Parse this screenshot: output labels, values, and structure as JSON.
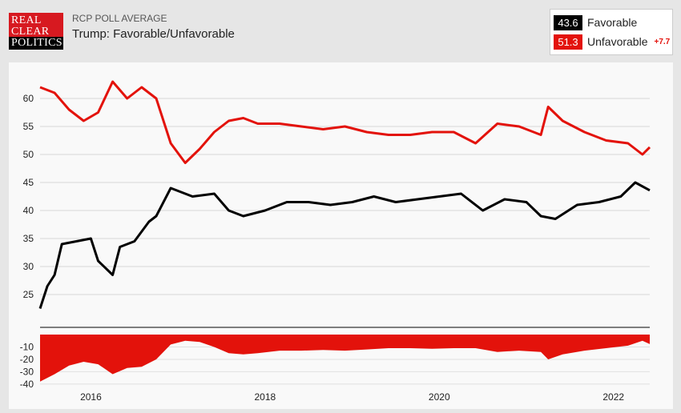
{
  "header": {
    "logo_lines": [
      "REAL",
      "CLEAR",
      "POLITICS"
    ],
    "kicker": "RCP POLL AVERAGE",
    "title": "Trump: Favorable/Unfavorable"
  },
  "legend": {
    "favorable": {
      "value": "43.6",
      "label": "Favorable",
      "color": "#000000"
    },
    "unfavorable": {
      "value": "51.3",
      "label": "Unfavorable",
      "color": "#e3120b"
    },
    "spread": "+7.7"
  },
  "chart_data": [
    {
      "type": "line",
      "title": "Trump: Favorable/Unfavorable",
      "ylim": [
        20,
        65
      ],
      "yticks": [
        25,
        30,
        35,
        40,
        45,
        50,
        55,
        60
      ],
      "xlim": [
        "2015-06",
        "2022-06"
      ],
      "xticks": [
        "2016",
        "2018",
        "2020",
        "2022"
      ],
      "grid": true,
      "series": [
        {
          "name": "Unfavorable",
          "color": "#e3120b",
          "points": [
            [
              "2015-06",
              62
            ],
            [
              "2015-08",
              61
            ],
            [
              "2015-10",
              58
            ],
            [
              "2015-12",
              56
            ],
            [
              "2016-02",
              57.5
            ],
            [
              "2016-04",
              63
            ],
            [
              "2016-06",
              60
            ],
            [
              "2016-08",
              62
            ],
            [
              "2016-10",
              60
            ],
            [
              "2016-12",
              52
            ],
            [
              "2017-02",
              48.5
            ],
            [
              "2017-04",
              51
            ],
            [
              "2017-06",
              54
            ],
            [
              "2017-08",
              56
            ],
            [
              "2017-10",
              56.5
            ],
            [
              "2017-12",
              55.5
            ],
            [
              "2018-03",
              55.5
            ],
            [
              "2018-06",
              55
            ],
            [
              "2018-09",
              54.5
            ],
            [
              "2018-12",
              55
            ],
            [
              "2019-03",
              54
            ],
            [
              "2019-06",
              53.5
            ],
            [
              "2019-09",
              53.5
            ],
            [
              "2019-12",
              54
            ],
            [
              "2020-03",
              54
            ],
            [
              "2020-06",
              52
            ],
            [
              "2020-09",
              55.5
            ],
            [
              "2020-12",
              55
            ],
            [
              "2021-03",
              53.5
            ],
            [
              "2021-04",
              58.5
            ],
            [
              "2021-06",
              56
            ],
            [
              "2021-09",
              54
            ],
            [
              "2021-12",
              52.5
            ],
            [
              "2022-03",
              52
            ],
            [
              "2022-05",
              50
            ],
            [
              "2022-06",
              51.3
            ]
          ]
        },
        {
          "name": "Favorable",
          "color": "#000000",
          "points": [
            [
              "2015-06",
              22.5
            ],
            [
              "2015-07",
              26.5
            ],
            [
              "2015-08",
              28.5
            ],
            [
              "2015-09",
              34
            ],
            [
              "2015-11",
              34.5
            ],
            [
              "2016-01",
              35
            ],
            [
              "2016-02",
              31
            ],
            [
              "2016-04",
              28.5
            ],
            [
              "2016-05",
              33.5
            ],
            [
              "2016-07",
              34.5
            ],
            [
              "2016-09",
              38
            ],
            [
              "2016-10",
              39
            ],
            [
              "2016-12",
              44
            ],
            [
              "2017-03",
              42.5
            ],
            [
              "2017-06",
              43
            ],
            [
              "2017-08",
              40
            ],
            [
              "2017-10",
              39
            ],
            [
              "2018-01",
              40
            ],
            [
              "2018-04",
              41.5
            ],
            [
              "2018-07",
              41.5
            ],
            [
              "2018-10",
              41
            ],
            [
              "2019-01",
              41.5
            ],
            [
              "2019-04",
              42.5
            ],
            [
              "2019-07",
              41.5
            ],
            [
              "2019-10",
              42
            ],
            [
              "2020-01",
              42.5
            ],
            [
              "2020-04",
              43
            ],
            [
              "2020-07",
              40
            ],
            [
              "2020-10",
              42
            ],
            [
              "2021-01",
              41.5
            ],
            [
              "2021-03",
              39
            ],
            [
              "2021-05",
              38.5
            ],
            [
              "2021-08",
              41
            ],
            [
              "2021-11",
              41.5
            ],
            [
              "2022-02",
              42.5
            ],
            [
              "2022-04",
              45
            ],
            [
              "2022-06",
              43.6
            ]
          ]
        }
      ]
    },
    {
      "type": "area",
      "title": "",
      "ylim": [
        -42,
        0
      ],
      "yticks": [
        -10,
        -20,
        -30,
        -40
      ],
      "series": [
        {
          "name": "",
          "color": "#e3120b",
          "points": [
            [
              "2015-06",
              -38
            ],
            [
              "2015-08",
              -32
            ],
            [
              "2015-10",
              -25
            ],
            [
              "2015-12",
              -22
            ],
            [
              "2016-02",
              -24
            ],
            [
              "2016-04",
              -32
            ],
            [
              "2016-06",
              -27
            ],
            [
              "2016-08",
              -26
            ],
            [
              "2016-10",
              -20
            ],
            [
              "2016-12",
              -8
            ],
            [
              "2017-02",
              -5
            ],
            [
              "2017-04",
              -6
            ],
            [
              "2017-06",
              -10
            ],
            [
              "2017-08",
              -15
            ],
            [
              "2017-10",
              -16
            ],
            [
              "2017-12",
              -15
            ],
            [
              "2018-03",
              -13
            ],
            [
              "2018-06",
              -13
            ],
            [
              "2018-09",
              -12.5
            ],
            [
              "2018-12",
              -13
            ],
            [
              "2019-03",
              -12
            ],
            [
              "2019-06",
              -11
            ],
            [
              "2019-09",
              -11
            ],
            [
              "2019-12",
              -11.5
            ],
            [
              "2020-03",
              -11
            ],
            [
              "2020-06",
              -11
            ],
            [
              "2020-09",
              -14
            ],
            [
              "2020-12",
              -13
            ],
            [
              "2021-03",
              -14
            ],
            [
              "2021-04",
              -20
            ],
            [
              "2021-06",
              -16
            ],
            [
              "2021-09",
              -13
            ],
            [
              "2021-12",
              -11
            ],
            [
              "2022-03",
              -9
            ],
            [
              "2022-05",
              -5
            ],
            [
              "2022-06",
              -7.7
            ]
          ]
        }
      ]
    }
  ]
}
